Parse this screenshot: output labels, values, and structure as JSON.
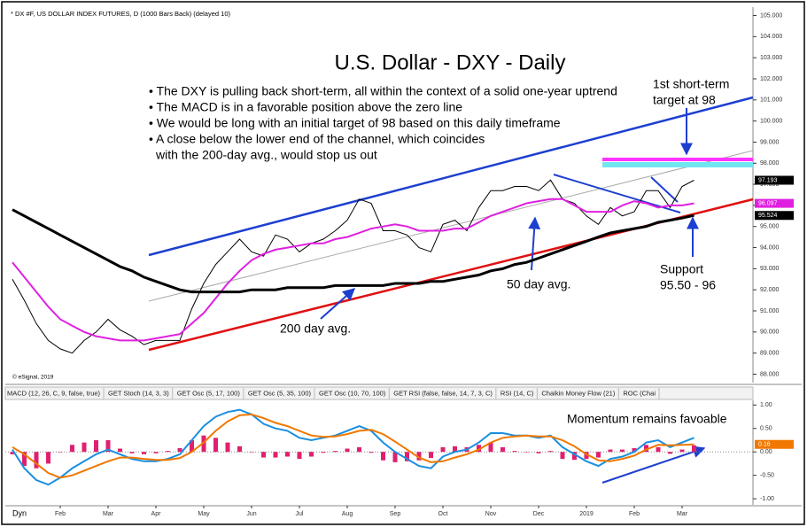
{
  "header": "* DX #F, US DOLLAR INDEX FUTURES, D (1000 Bars Back) (delayed 10)",
  "copyright": "© eSignal, 2019",
  "tabs": [
    "MACD (12, 26, C, 9, false, true)",
    "GET Stoch (14, 3, 3)",
    "GET Osc (5, 17, 100)",
    "GET Osc (5, 35, 100)",
    "GET Osc (10, 70, 100)",
    "GET RSI (false, false, 14, 7, 3, C)",
    "RSI (14, C)",
    "Chaikin Money Flow (21)",
    "ROC (Chai"
  ],
  "corner": "Dyn",
  "chart_data": [
    {
      "type": "line",
      "title": "U.S. Dollar - DXY - Daily",
      "notes": [
        "• The DXY is pulling back short-term, all within the context of a solid one-year uptrend",
        "• The MACD is in a favorable position above the zero line",
        "• We would be long with an initial target of 98 based on this daily timeframe",
        "• A close below the lower end of the channel, which coincides",
        "with the 200-day avg., would stop us out"
      ],
      "annotations": {
        "target": [
          "1st short-term",
          "target at 98"
        ],
        "support": [
          "Support",
          "95.50 - 96"
        ]
      },
      "ylim": [
        87.6,
        105.4
      ],
      "yticks": [
        {
          "value": 88,
          "label": "88.000"
        },
        {
          "value": 89,
          "label": "89.000"
        },
        {
          "value": 90,
          "label": "90.000"
        },
        {
          "value": 91,
          "label": "91.000"
        },
        {
          "value": 92,
          "label": "92.000"
        },
        {
          "value": 93,
          "label": "93.000"
        },
        {
          "value": 94,
          "label": "94.000"
        },
        {
          "value": 95,
          "label": "95.000"
        },
        {
          "value": 96,
          "label": "96.000"
        },
        {
          "value": 97,
          "label": "97.000"
        },
        {
          "value": 98,
          "label": "98.000"
        },
        {
          "value": 99,
          "label": "99.000"
        },
        {
          "value": 100,
          "label": "100.000"
        },
        {
          "value": 101,
          "label": "101.000"
        },
        {
          "value": 102,
          "label": "102.000"
        },
        {
          "value": 103,
          "label": "103.000"
        },
        {
          "value": 104,
          "label": "104.000"
        },
        {
          "value": 105,
          "label": "105.000"
        }
      ],
      "series": [
        {
          "color": "#000000",
          "width": 1,
          "last_tag": true,
          "values": [
            92.5,
            91.5,
            90.4,
            89.6,
            89.2,
            89.0,
            89.6,
            90.0,
            90.6,
            90.1,
            89.8,
            89.4,
            89.6,
            89.6,
            89.6,
            91.1,
            92.3,
            93.2,
            93.8,
            94.4,
            93.8,
            93.6,
            94.6,
            94.4,
            93.8,
            94.2,
            94.4,
            94.8,
            95.3,
            96.3,
            96.1,
            94.8,
            94.8,
            94.6,
            94.0,
            93.8,
            95.1,
            95.3,
            94.8,
            95.9,
            96.7,
            96.7,
            96.9,
            96.9,
            96.7,
            97.2,
            96.3,
            96.1,
            95.5,
            95.1,
            95.9,
            95.5,
            95.7,
            96.7,
            96.7,
            95.9,
            96.9,
            97.193
          ]
        },
        {
          "name": "50 day avg.",
          "color": "#e020e0",
          "width": 2,
          "last_tag": true,
          "values": [
            93.3,
            92.6,
            91.9,
            91.2,
            90.6,
            90.3,
            90.0,
            89.8,
            89.7,
            89.6,
            89.6,
            89.6,
            89.7,
            89.8,
            89.9,
            90.4,
            90.9,
            91.6,
            92.3,
            92.9,
            93.4,
            93.7,
            93.9,
            94.0,
            94.1,
            94.2,
            94.2,
            94.4,
            94.5,
            94.7,
            94.9,
            95.0,
            95.1,
            95.0,
            94.8,
            94.8,
            94.8,
            94.9,
            94.9,
            95.2,
            95.5,
            95.7,
            95.9,
            96.1,
            96.2,
            96.3,
            96.3,
            96.0,
            95.7,
            95.7,
            95.7,
            96.0,
            96.2,
            96.1,
            95.9,
            96.0,
            96.0,
            96.097
          ]
        },
        {
          "name": "200 day avg.",
          "color": "#000000",
          "width": 3,
          "last_tag": true,
          "values": [
            95.8,
            95.5,
            95.2,
            94.9,
            94.6,
            94.3,
            94.0,
            93.7,
            93.4,
            93.1,
            92.9,
            92.6,
            92.4,
            92.2,
            92.0,
            91.9,
            91.9,
            91.9,
            91.9,
            91.9,
            92.0,
            92.0,
            92.0,
            92.1,
            92.1,
            92.1,
            92.1,
            92.2,
            92.2,
            92.2,
            92.2,
            92.2,
            92.3,
            92.3,
            92.3,
            92.4,
            92.4,
            92.5,
            92.6,
            92.7,
            92.9,
            93.0,
            93.2,
            93.3,
            93.5,
            93.7,
            93.9,
            94.1,
            94.3,
            94.5,
            94.7,
            94.8,
            94.9,
            95.0,
            95.2,
            95.3,
            95.4,
            95.524
          ]
        }
      ]
    },
    {
      "type": "line",
      "title": "Momentum remains favoable",
      "categories": [
        null,
        null,
        null,
        null,
        "Feb",
        null,
        null,
        null,
        "Mar",
        null,
        null,
        null,
        "Apr",
        null,
        null,
        null,
        "May",
        null,
        null,
        null,
        "Jun",
        null,
        null,
        null,
        "Jul",
        null,
        null,
        null,
        "Aug",
        null,
        null,
        null,
        "Sep",
        null,
        null,
        null,
        "Oct",
        null,
        null,
        null,
        "Nov",
        null,
        null,
        null,
        "Dec",
        null,
        null,
        null,
        "2019",
        null,
        null,
        null,
        "Feb",
        null,
        null,
        null,
        "Mar",
        null
      ],
      "ylim": [
        -1.13,
        1.1
      ],
      "yticks": [
        {
          "value": -1,
          "label": "-1.00"
        },
        {
          "value": -0.5,
          "label": "-0.50"
        },
        {
          "value": 0,
          "label": "0.00"
        },
        {
          "value": 0.5,
          "label": "0.50"
        },
        {
          "value": 1,
          "label": "1.00"
        }
      ],
      "series": [
        {
          "type": "bar",
          "color": "#e0206e",
          "values": [
            -0.05,
            -0.3,
            -0.35,
            -0.25,
            0.0,
            0.15,
            0.2,
            0.25,
            0.25,
            0.07,
            -0.03,
            -0.05,
            -0.03,
            0.02,
            0.08,
            0.25,
            0.35,
            0.3,
            0.2,
            0.12,
            0.0,
            -0.12,
            -0.12,
            -0.1,
            -0.15,
            -0.1,
            -0.02,
            0.02,
            0.07,
            0.1,
            -0.02,
            -0.18,
            -0.22,
            -0.2,
            -0.18,
            -0.13,
            0.1,
            0.12,
            0.1,
            0.15,
            0.2,
            0.1,
            0.02,
            0.0,
            -0.03,
            0.02,
            -0.15,
            -0.17,
            -0.15,
            -0.12,
            0.05,
            0.05,
            0.08,
            0.15,
            0.1,
            -0.04,
            0.05,
            0.14
          ]
        },
        {
          "color": "#1a8fe0",
          "width": 2,
          "last_tag": false,
          "values": [
            0.05,
            -0.35,
            -0.6,
            -0.7,
            -0.55,
            -0.35,
            -0.2,
            -0.05,
            0.05,
            -0.05,
            -0.15,
            -0.2,
            -0.2,
            -0.15,
            -0.05,
            0.25,
            0.55,
            0.75,
            0.85,
            0.9,
            0.8,
            0.6,
            0.5,
            0.45,
            0.3,
            0.25,
            0.3,
            0.35,
            0.45,
            0.55,
            0.45,
            0.2,
            0.0,
            -0.15,
            -0.3,
            -0.35,
            -0.1,
            0.0,
            0.05,
            0.2,
            0.4,
            0.4,
            0.35,
            0.35,
            0.3,
            0.35,
            0.1,
            -0.05,
            -0.2,
            -0.3,
            -0.15,
            -0.1,
            0.0,
            0.2,
            0.25,
            0.1,
            0.2,
            0.3
          ]
        },
        {
          "color": "#f07800",
          "width": 2,
          "last_tag": true,
          "values": [
            0.1,
            -0.05,
            -0.25,
            -0.45,
            -0.55,
            -0.5,
            -0.4,
            -0.3,
            -0.2,
            -0.12,
            -0.12,
            -0.15,
            -0.17,
            -0.17,
            -0.13,
            0.0,
            0.2,
            0.45,
            0.65,
            0.78,
            0.8,
            0.72,
            0.62,
            0.55,
            0.45,
            0.35,
            0.32,
            0.33,
            0.38,
            0.45,
            0.47,
            0.38,
            0.22,
            0.05,
            -0.12,
            -0.22,
            -0.2,
            -0.12,
            -0.05,
            0.05,
            0.2,
            0.3,
            0.33,
            0.35,
            0.33,
            0.33,
            0.25,
            0.12,
            -0.05,
            -0.18,
            -0.2,
            -0.15,
            -0.08,
            0.05,
            0.15,
            0.14,
            0.15,
            0.16
          ]
        }
      ]
    }
  ]
}
